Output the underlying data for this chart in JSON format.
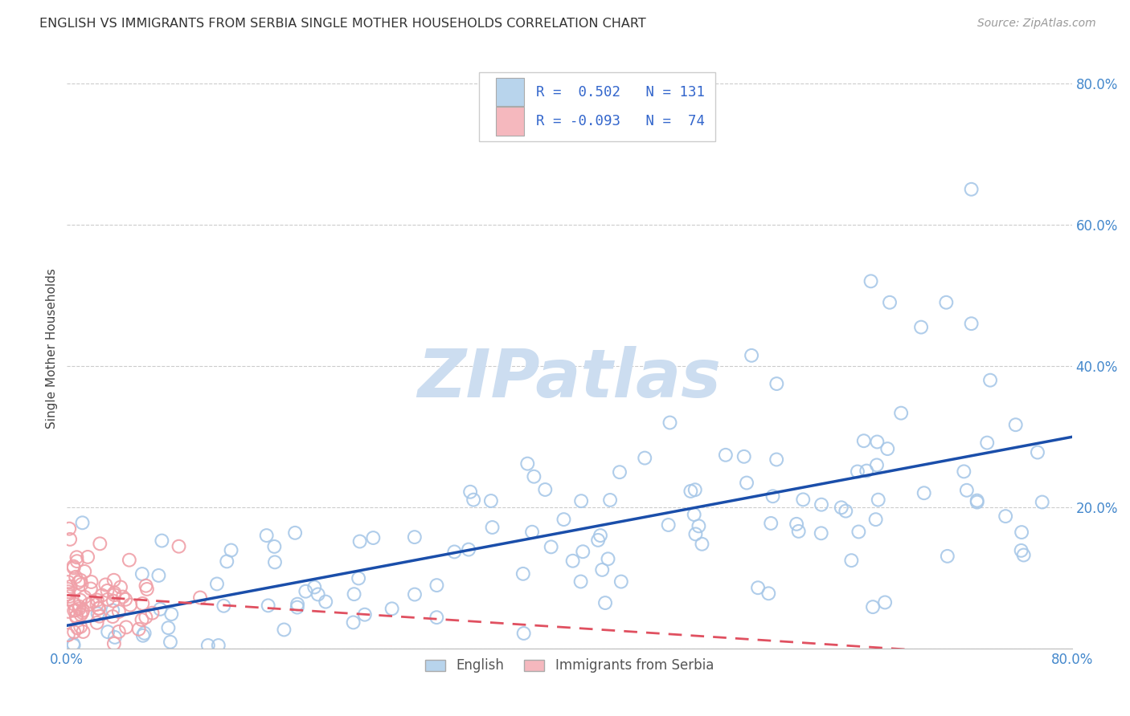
{
  "title": "ENGLISH VS IMMIGRANTS FROM SERBIA SINGLE MOTHER HOUSEHOLDS CORRELATION CHART",
  "source": "Source: ZipAtlas.com",
  "ylabel": "Single Mother Households",
  "xlim": [
    0.0,
    0.8
  ],
  "ylim": [
    0.0,
    0.85
  ],
  "xticks": [
    0.0,
    0.2,
    0.4,
    0.6,
    0.8
  ],
  "yticks": [
    0.0,
    0.2,
    0.4,
    0.6,
    0.8
  ],
  "xticklabels": [
    "0.0%",
    "",
    "",
    "",
    "80.0%"
  ],
  "yticklabels": [
    "",
    "20.0%",
    "40.0%",
    "60.0%",
    "80.0%"
  ],
  "english_R": 0.502,
  "english_N": 131,
  "serbia_R": -0.093,
  "serbia_N": 74,
  "english_color": "#a8c8e8",
  "english_line_color": "#1a4eaa",
  "serbia_color": "#f0a0a8",
  "serbia_line_color": "#e05060",
  "legend_box_color_english": "#b8d4ec",
  "legend_box_color_serbia": "#f5b8be",
  "watermark": "ZIPatlas",
  "watermark_color": "#ccddf0",
  "background_color": "#ffffff",
  "grid_color": "#cccccc",
  "tick_color": "#4488cc",
  "title_color": "#333333",
  "source_color": "#999999"
}
